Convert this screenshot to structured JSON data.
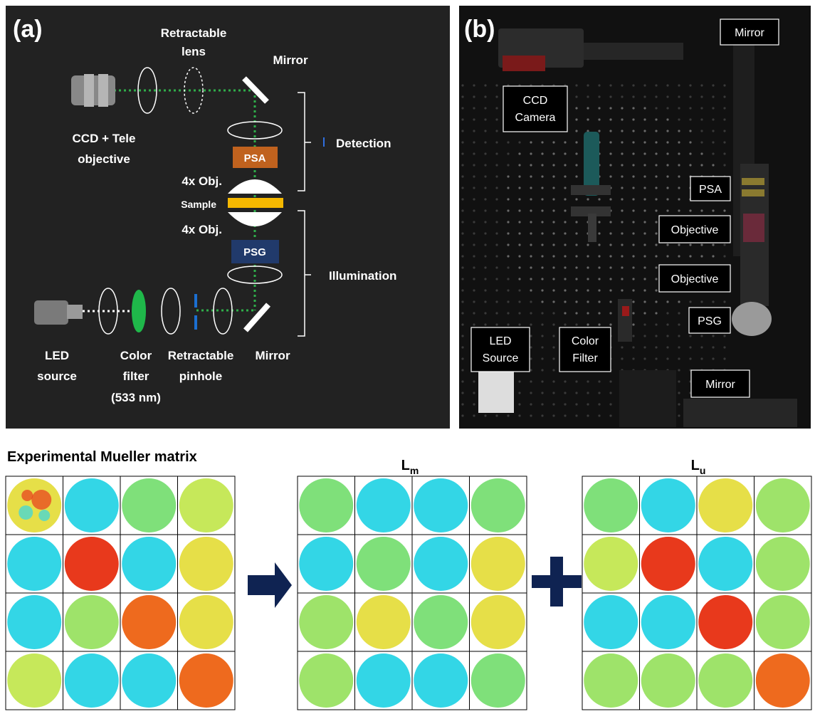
{
  "panel_a": {
    "label": "(a)",
    "labels": {
      "retractable_lens_1": "Retractable",
      "retractable_lens_2": "lens",
      "mirror_top": "Mirror",
      "ccd_1": "CCD + Tele",
      "ccd_2": "objective",
      "detection": "Detection",
      "psa": "PSA",
      "obj_top": "4x Obj.",
      "sample": "Sample",
      "obj_bottom": "4x Obj.",
      "psg": "PSG",
      "illumination": "Illumination",
      "led_1": "LED",
      "led_2": "source",
      "color_filter_1": "Color",
      "color_filter_2": "filter",
      "color_filter_3": "(533 nm)",
      "pinhole_1": "Retractable",
      "pinhole_2": "pinhole",
      "mirror_bottom": "Mirror"
    }
  },
  "panel_b": {
    "label": "(b)",
    "labels": {
      "mirror_top": "Mirror",
      "ccd_1": "CCD",
      "ccd_2": "Camera",
      "psa": "PSA",
      "objective_1": "Objective",
      "objective_2": "Objective",
      "psg": "PSG",
      "led_1": "LED",
      "led_2": "Source",
      "filter_1": "Color",
      "filter_2": "Filter",
      "mirror_bottom": "Mirror"
    }
  },
  "matrices": {
    "experimental_title": "Experimental Mueller matrix",
    "lm_title": "L",
    "lm_sub": "m",
    "lu_title": "L",
    "lu_sub": "u"
  },
  "colors": {
    "panel_bg": "#222222",
    "beam": "#2fae4a",
    "psa": "#c0621e",
    "psg": "#213a6b",
    "sample": "#f5b800",
    "arrow": "#0f2352",
    "filter": "#1fb84a",
    "pinhole": "#1b6fd1",
    "flat": "#7fe07a",
    "cyan": "#33d6e6",
    "red": "#e8391c",
    "orange": "#ee6a1e",
    "yellowgreen": "#c6e85a",
    "yellow": "#e6df48",
    "green": "#9ee36a"
  }
}
